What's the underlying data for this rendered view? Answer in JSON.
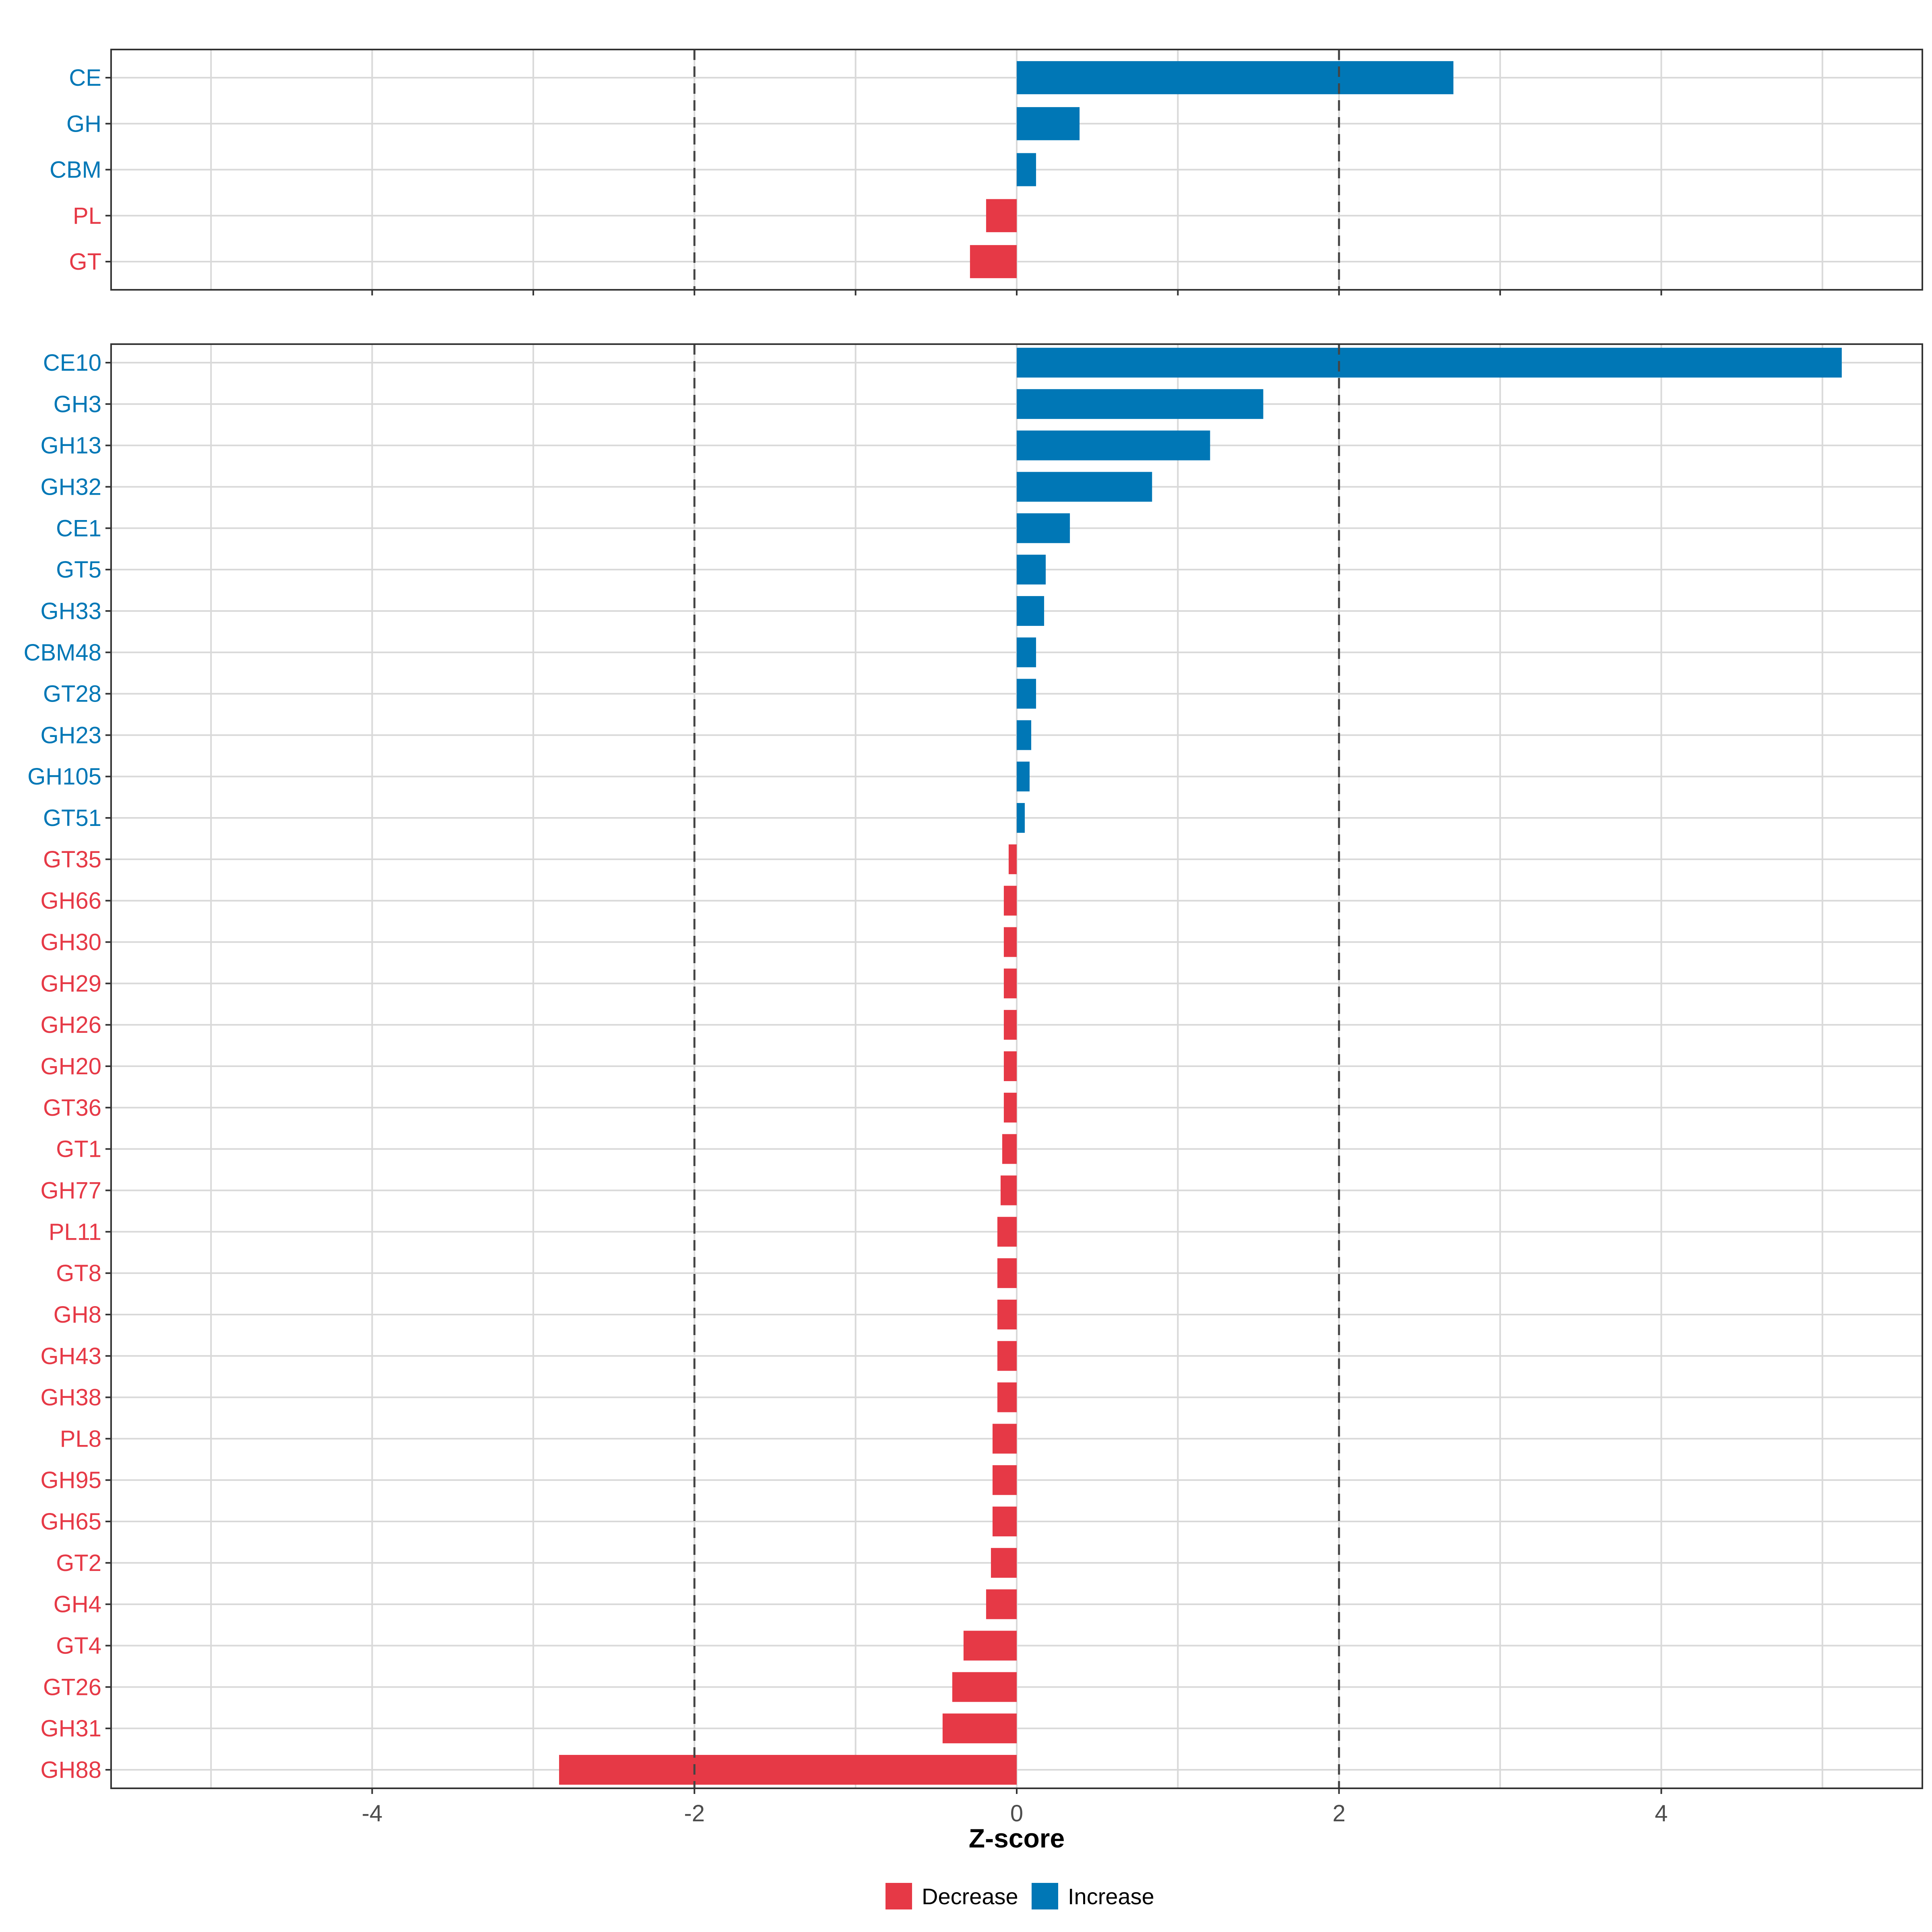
{
  "chart_data": [
    {
      "type": "bar",
      "orientation": "horizontal",
      "panel": "top",
      "categories": [
        "CE",
        "GH",
        "CBM",
        "PL",
        "GT"
      ],
      "values": [
        2.71,
        0.39,
        0.12,
        -0.19,
        -0.29
      ],
      "xlim": [
        -5.62,
        5.62
      ],
      "grid": true,
      "reference_lines": [
        -2,
        2
      ]
    },
    {
      "type": "bar",
      "orientation": "horizontal",
      "panel": "bottom",
      "categories": [
        "CE10",
        "GH3",
        "GH13",
        "GH32",
        "CE1",
        "GT5",
        "GH33",
        "CBM48",
        "GT28",
        "GH23",
        "GH105",
        "GT51",
        "GT35",
        "GH66",
        "GH30",
        "GH29",
        "GH26",
        "GH20",
        "GT36",
        "GT1",
        "GH77",
        "PL11",
        "GT8",
        "GH8",
        "GH43",
        "GH38",
        "PL8",
        "GH95",
        "GH65",
        "GT2",
        "GH4",
        "GT4",
        "GT26",
        "GH31",
        "GH88"
      ],
      "values": [
        5.12,
        1.53,
        1.2,
        0.84,
        0.33,
        0.18,
        0.17,
        0.12,
        0.12,
        0.09,
        0.08,
        0.05,
        -0.05,
        -0.08,
        -0.08,
        -0.08,
        -0.08,
        -0.08,
        -0.08,
        -0.09,
        -0.1,
        -0.12,
        -0.12,
        -0.12,
        -0.12,
        -0.12,
        -0.15,
        -0.15,
        -0.15,
        -0.16,
        -0.19,
        -0.33,
        -0.4,
        -0.46,
        -2.84
      ],
      "xlim": [
        -5.62,
        5.62
      ],
      "grid": true,
      "reference_lines": [
        -2,
        2
      ],
      "x_ticks": [
        -4,
        -2,
        0,
        2,
        4
      ],
      "x_tick_labels": [
        "-4",
        "-2",
        "0",
        "2",
        "4"
      ],
      "xlabel": "Z-score"
    }
  ],
  "legend": {
    "position": "bottom",
    "items": [
      {
        "label": "Decrease",
        "color": "#E63946"
      },
      {
        "label": "Increase",
        "color": "#0077B6"
      }
    ]
  },
  "colors": {
    "increase": "#0077B6",
    "decrease": "#E63946",
    "grid": "#D9D9D9",
    "reference_line": "#444444",
    "panel_border": "#333333"
  }
}
